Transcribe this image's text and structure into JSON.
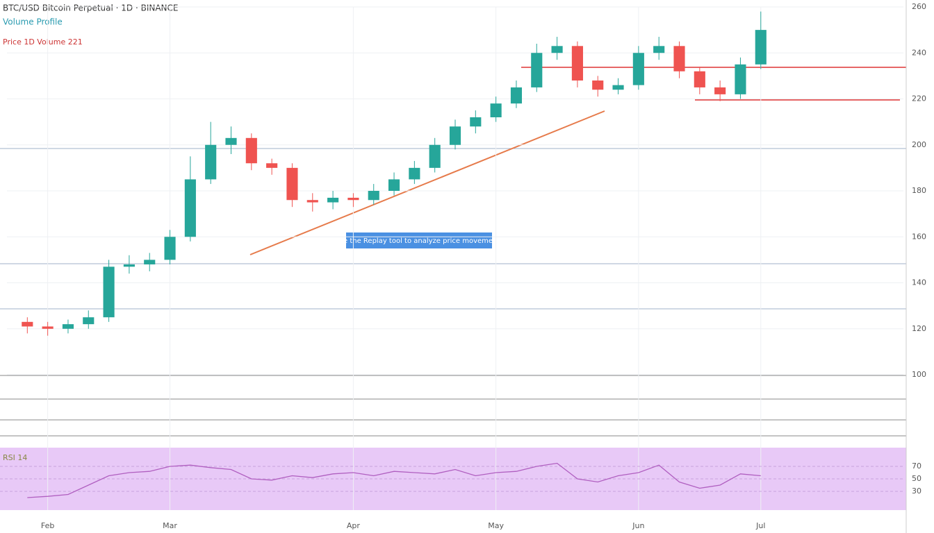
{
  "header": {
    "title": "BTC/USD Bitcoin Perpetual · 1D · BINANCE",
    "subtitle": "Volume Profile",
    "info": "Price 1D Volume 221"
  },
  "note": "Use the Replay tool to analyze price movements",
  "chart_data": [
    {
      "type": "candlestick",
      "up_color": "#26a69a",
      "down_color": "#ef5350",
      "grid": true,
      "x": [
        1,
        2,
        3,
        4,
        5,
        6,
        7,
        8,
        9,
        10,
        11,
        12,
        13,
        14,
        15,
        16,
        17,
        18,
        19,
        20,
        21,
        22,
        23,
        24,
        25,
        26,
        27,
        28,
        29,
        30,
        31,
        32,
        33,
        34,
        35,
        36,
        37
      ],
      "open": [
        123,
        121,
        120,
        122,
        125,
        147,
        148,
        150,
        160,
        185,
        200,
        203,
        192,
        190,
        176,
        175,
        177,
        176,
        180,
        185,
        190,
        200,
        208,
        212,
        218,
        225,
        240,
        243,
        228,
        224,
        226,
        240,
        243,
        232,
        225,
        222,
        235
      ],
      "high": [
        125,
        123,
        124,
        128,
        150,
        152,
        153,
        163,
        195,
        210,
        208,
        205,
        194,
        192,
        179,
        180,
        179,
        183,
        188,
        193,
        203,
        211,
        215,
        221,
        228,
        244,
        247,
        245,
        230,
        229,
        243,
        247,
        245,
        234,
        228,
        238,
        258
      ],
      "low": [
        118,
        117,
        118,
        120,
        123,
        144,
        145,
        148,
        158,
        183,
        196,
        189,
        187,
        173,
        171,
        172,
        173,
        174,
        178,
        183,
        188,
        198,
        205,
        210,
        216,
        223,
        237,
        225,
        221,
        222,
        224,
        237,
        229,
        222,
        219,
        220,
        233
      ],
      "close": [
        121,
        120,
        122,
        125,
        147,
        148,
        150,
        160,
        185,
        200,
        203,
        192,
        190,
        176,
        175,
        177,
        176,
        180,
        185,
        190,
        200,
        208,
        212,
        218,
        225,
        240,
        243,
        228,
        224,
        226,
        240,
        243,
        232,
        225,
        222,
        235,
        250
      ],
      "xlim": [
        0,
        44
      ],
      "xticks": [
        {
          "value": 2,
          "label": "Feb"
        },
        {
          "value": 8,
          "label": "Mar"
        },
        {
          "value": 17,
          "label": "Apr"
        },
        {
          "value": 24,
          "label": "May"
        },
        {
          "value": 31,
          "label": "Jun"
        },
        {
          "value": 37,
          "label": "Jul"
        }
      ],
      "ylim": [
        100,
        260
      ],
      "yticks": [
        100,
        120,
        140,
        160,
        180,
        200,
        220,
        240,
        260
      ]
    },
    {
      "type": "line",
      "title": "RSI 14",
      "color": "#b05fc0",
      "x": [
        1,
        2,
        3,
        4,
        5,
        6,
        7,
        8,
        9,
        10,
        11,
        12,
        13,
        14,
        15,
        16,
        17,
        18,
        19,
        20,
        21,
        22,
        23,
        24,
        25,
        26,
        27,
        28,
        29,
        30,
        31,
        32,
        33,
        34,
        35,
        36,
        37
      ],
      "values": [
        20,
        22,
        25,
        40,
        55,
        60,
        62,
        70,
        72,
        68,
        65,
        50,
        48,
        55,
        52,
        58,
        60,
        55,
        62,
        60,
        58,
        65,
        55,
        60,
        62,
        70,
        75,
        50,
        45,
        55,
        60,
        72,
        45,
        35,
        40,
        58,
        55
      ],
      "xlim": [
        0,
        44
      ],
      "ylim": [
        0,
        100
      ],
      "yticks": [
        30,
        50,
        70
      ]
    }
  ]
}
